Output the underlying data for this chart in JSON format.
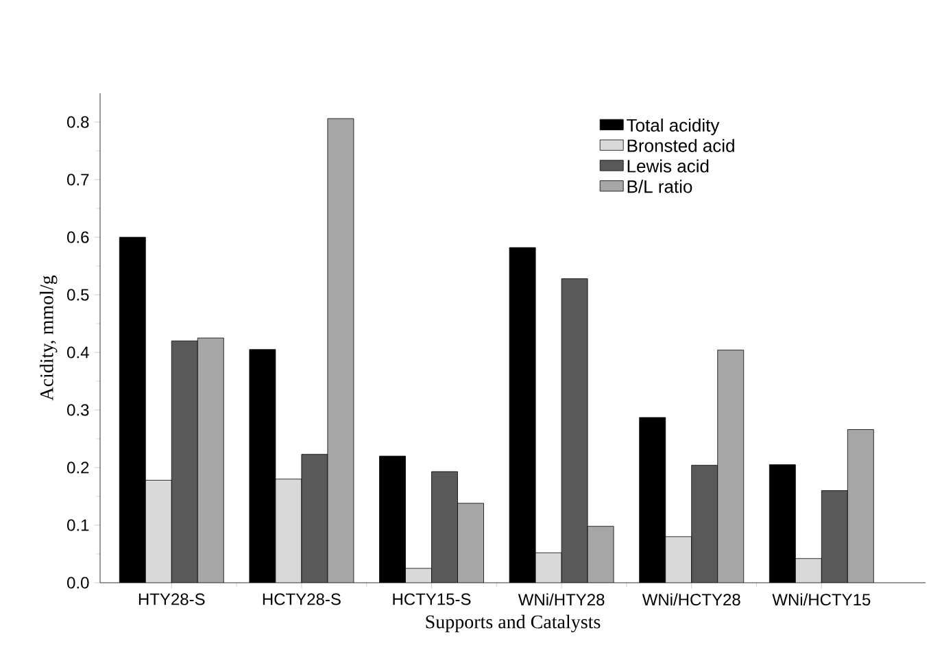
{
  "chart_data": {
    "type": "bar",
    "xlabel": "Supports and Catalysts",
    "ylabel": "Acidity, mmol/g",
    "categories": [
      "HTY28-S",
      "HCTY28-S",
      "HCTY15-S",
      "WNi/HTY28",
      "WNi/HCTY28",
      "WNi/HCTY15"
    ],
    "series": [
      {
        "name": "Total acidity",
        "color": "#000000",
        "values": [
          0.6,
          0.405,
          0.22,
          0.582,
          0.287,
          0.205
        ]
      },
      {
        "name": "Bronsted acid",
        "color": "#d9d9d9",
        "values": [
          0.178,
          0.18,
          0.025,
          0.052,
          0.08,
          0.042
        ]
      },
      {
        "name": "Lewis acid",
        "color": "#595959",
        "values": [
          0.42,
          0.223,
          0.193,
          0.528,
          0.204,
          0.16
        ]
      },
      {
        "name": "B/L ratio",
        "color": "#a6a6a6",
        "values": [
          0.425,
          0.806,
          0.138,
          0.098,
          0.404,
          0.266
        ]
      }
    ],
    "ylim": [
      0,
      0.85
    ],
    "yticks": [
      {
        "value": 0,
        "label": "0.0"
      },
      {
        "value": 0.1,
        "label": "0.1"
      },
      {
        "value": 0.2,
        "label": "0.2"
      },
      {
        "value": 0.3,
        "label": "0.3"
      },
      {
        "value": 0.4,
        "label": "0.4"
      },
      {
        "value": 0.5,
        "label": "0.5"
      },
      {
        "value": 0.6,
        "label": "0.6"
      },
      {
        "value": 0.7,
        "label": "0.7"
      },
      {
        "value": 0.8,
        "label": "0.8"
      }
    ],
    "legend": "top right",
    "grid": false
  }
}
